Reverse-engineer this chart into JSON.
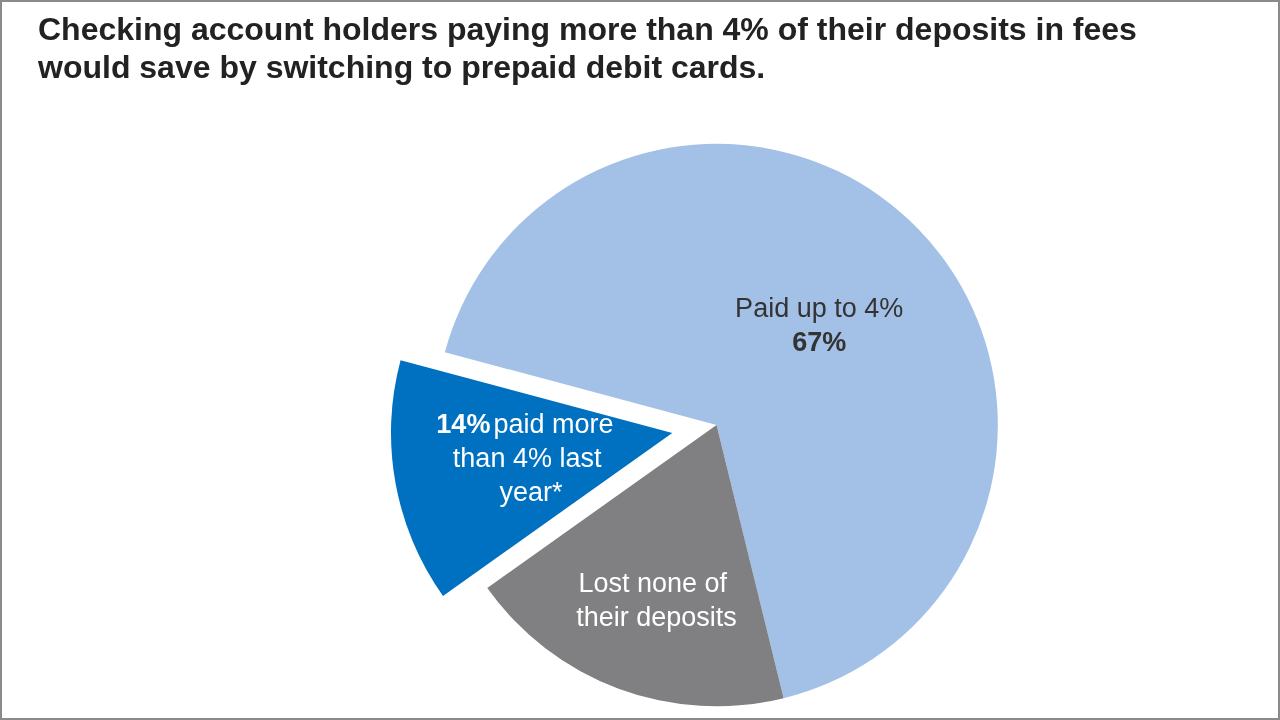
{
  "chart_data": {
    "type": "pie",
    "title": "Checking account holders paying more than 4% of their deposits in fees would save by switching to prepaid debit cards.",
    "categories": [
      "Paid up to 4%",
      "Lost none of their deposits",
      "paid more than 4% last year*"
    ],
    "values": [
      67,
      19,
      14
    ],
    "colors": [
      "#a3c1e6",
      "#808083",
      "#0070c0"
    ],
    "value_labels": [
      "67%",
      null,
      "14%"
    ],
    "legend": false
  }
}
